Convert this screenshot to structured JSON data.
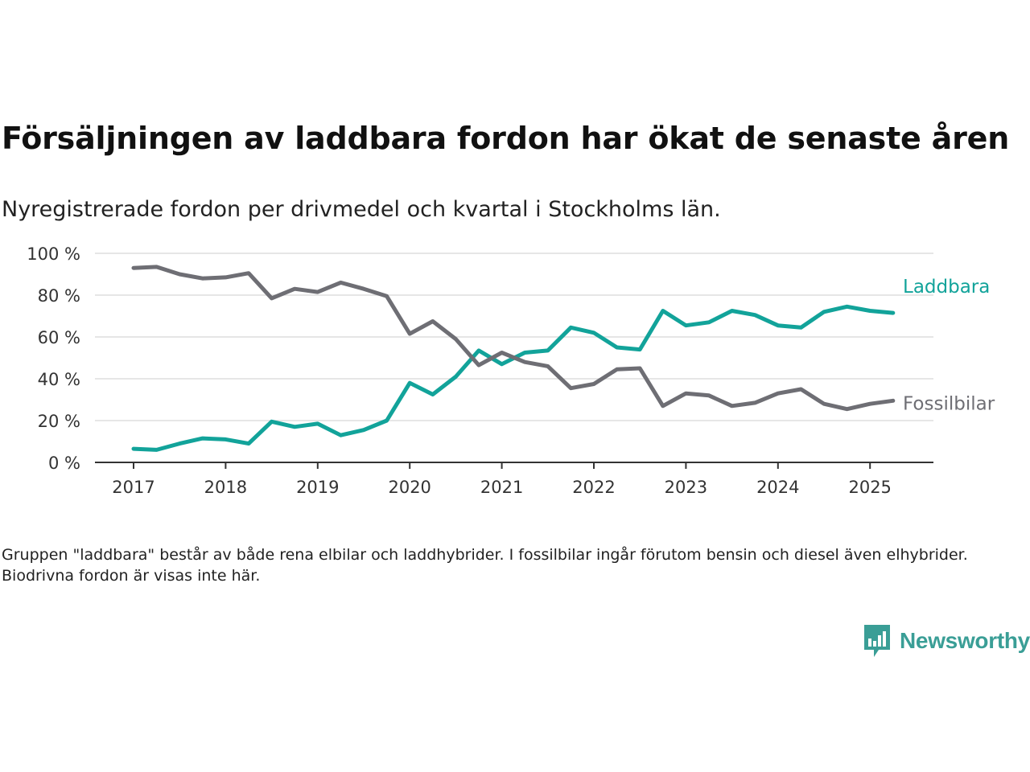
{
  "title": "Försäljningen av laddbara fordon har ökat de senaste åren",
  "subtitle": "Nyregistrerade fordon per drivmedel och kvartal i Stockholms län.",
  "note": "Gruppen \"laddbara\" består av både rena elbilar och laddhybrider. I fossilbilar ingår förutom bensin och diesel även elhybrider. Biodrivna fordon är visas inte här.",
  "logo": {
    "text": "Newsworthy",
    "color": "#3a9e96",
    "icon": "bar-chart-speech-bubble-icon"
  },
  "chart_data": {
    "type": "line",
    "x": [
      "2017 K1",
      "2017 K2",
      "2017 K3",
      "2017 K4",
      "2018 K1",
      "2018 K2",
      "2018 K3",
      "2018 K4",
      "2019 K1",
      "2019 K2",
      "2019 K3",
      "2019 K4",
      "2020 K1",
      "2020 K2",
      "2020 K3",
      "2020 K4",
      "2021 K1",
      "2021 K2",
      "2021 K3",
      "2021 K4",
      "2022 K1",
      "2022 K2",
      "2022 K3",
      "2022 K4",
      "2023 K1",
      "2023 K2",
      "2023 K3",
      "2023 K4",
      "2024 K1",
      "2024 K2",
      "2024 K3",
      "2024 K4",
      "2025 K1",
      "2025 K2"
    ],
    "series": [
      {
        "name": "Laddbara",
        "color": "#12a39a",
        "values": [
          6.5,
          6,
          9,
          11.5,
          11,
          9,
          19.5,
          17,
          18.5,
          13,
          15.5,
          20,
          38,
          32.5,
          41,
          53.5,
          47,
          52.5,
          53.5,
          64.5,
          62,
          55,
          54,
          72.5,
          65.5,
          67,
          72.5,
          70.5,
          65.5,
          64.5,
          72,
          74.5,
          72.5,
          71.5
        ]
      },
      {
        "name": "Fossilbilar",
        "color": "#6e6e74",
        "values": [
          93,
          93.5,
          90,
          88,
          88.5,
          90.5,
          78.5,
          83,
          81.5,
          86,
          83,
          79.5,
          61.5,
          67.5,
          59,
          46.5,
          52.5,
          48,
          46,
          35.5,
          37.5,
          44.5,
          45,
          27,
          33,
          32,
          27,
          28.5,
          33,
          35,
          28,
          25.5,
          28,
          29.5
        ]
      }
    ],
    "xtick_labels": [
      "2017",
      "2018",
      "2019",
      "2020",
      "2021",
      "2022",
      "2023",
      "2024",
      "2025"
    ],
    "yticks": [
      0,
      20,
      40,
      60,
      80,
      100
    ],
    "ytick_labels": [
      "0 %",
      "20 %",
      "40 %",
      "60 %",
      "80 %",
      "100 %"
    ],
    "ylim": [
      0,
      100
    ],
    "grid": "horizontal",
    "legend": "direct labels at line ends",
    "axis_color": "#333333",
    "grid_color": "#dedede"
  }
}
